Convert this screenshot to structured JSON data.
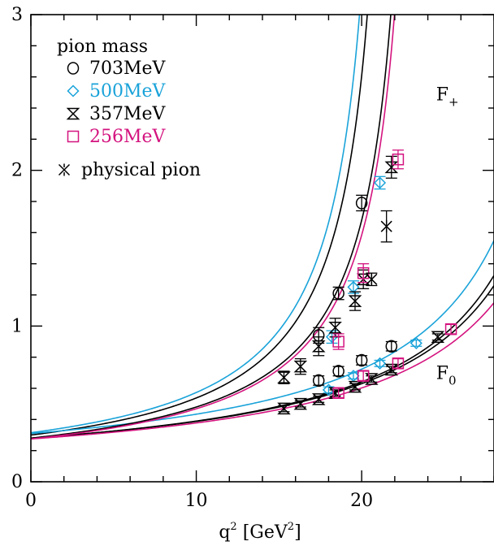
{
  "chart_data": {
    "type": "scatter",
    "xlabel_base": "q",
    "xlabel_sup": "2",
    "xlabel_unit_open": "[GeV",
    "xlabel_unit_sup": "2",
    "xlabel_unit_close": "]",
    "xlim": [
      0,
      28
    ],
    "ylim": [
      0,
      3
    ],
    "xticks": [
      0,
      10,
      20
    ],
    "yticks": [
      0,
      1,
      2,
      3
    ],
    "grid": false,
    "legend_position": "top-left",
    "legend_title": "pion mass",
    "curve_labels": [
      {
        "base": "F",
        "sub": "+",
        "x": 24.5,
        "y": 2.45
      },
      {
        "base": "F",
        "sub": "0",
        "x": 24.5,
        "y": 0.66
      }
    ],
    "colors": {
      "axis": "#000000",
      "black": "#000000",
      "cyan": "#1aa3d9",
      "magenta": "#d4147f"
    },
    "series": [
      {
        "name": "703MeV",
        "color": "#000000",
        "marker": "circle",
        "fplus": [
          {
            "x": 17.4,
            "y": 0.94,
            "e": 0.05
          },
          {
            "x": 18.6,
            "y": 1.21,
            "e": 0.04
          },
          {
            "x": 20.0,
            "y": 1.79,
            "e": 0.05
          }
        ],
        "fzero": [
          {
            "x": 17.4,
            "y": 0.65,
            "e": 0.03
          },
          {
            "x": 18.6,
            "y": 0.71,
            "e": 0.03
          },
          {
            "x": 20.0,
            "y": 0.78,
            "e": 0.03
          },
          {
            "x": 21.8,
            "y": 0.87,
            "e": 0.03
          }
        ],
        "curve_plus": {
          "a": 0.3,
          "m2": 22.6,
          "xmax": 22.2
        },
        "curve_zero": {
          "a": 0.28,
          "m2": 36.0,
          "xmax": 28.0
        }
      },
      {
        "name": "500MeV",
        "color": "#1aa3d9",
        "marker": "diamond",
        "fplus": [
          {
            "x": 18.2,
            "y": 0.93,
            "e": 0.04
          },
          {
            "x": 19.5,
            "y": 1.25,
            "e": 0.04
          },
          {
            "x": 21.1,
            "y": 1.92,
            "e": 0.04
          }
        ],
        "fzero": [
          {
            "x": 18.0,
            "y": 0.59,
            "e": 0.02
          },
          {
            "x": 19.5,
            "y": 0.68,
            "e": 0.02
          },
          {
            "x": 21.1,
            "y": 0.76,
            "e": 0.02
          },
          {
            "x": 23.3,
            "y": 0.89,
            "e": 0.02
          }
        ],
        "curve_plus": {
          "a": 0.315,
          "m2": 22.2,
          "xmax": 22.0
        },
        "curve_zero": {
          "a": 0.31,
          "m2": 35.0,
          "xmax": 28.0
        }
      },
      {
        "name": "357MeV",
        "color": "#000000",
        "marker": "hourglass",
        "fplus": [
          {
            "x": 15.3,
            "y": 0.67,
            "e": 0.04
          },
          {
            "x": 16.3,
            "y": 0.74,
            "e": 0.05
          },
          {
            "x": 17.4,
            "y": 0.87,
            "e": 0.06
          },
          {
            "x": 18.4,
            "y": 0.99,
            "e": 0.06
          },
          {
            "x": 19.6,
            "y": 1.16,
            "e": 0.06
          },
          {
            "x": 20.1,
            "y": 1.3,
            "e": 0.06
          },
          {
            "x": 21.8,
            "y": 2.02,
            "e": 0.07
          }
        ],
        "fzero": [
          {
            "x": 15.3,
            "y": 0.47,
            "e": 0.02
          },
          {
            "x": 16.3,
            "y": 0.5,
            "e": 0.02
          },
          {
            "x": 17.4,
            "y": 0.53,
            "e": 0.02
          },
          {
            "x": 18.4,
            "y": 0.57,
            "e": 0.02
          },
          {
            "x": 19.6,
            "y": 0.61,
            "e": 0.02
          },
          {
            "x": 20.6,
            "y": 0.66,
            "e": 0.02
          },
          {
            "x": 21.8,
            "y": 0.72,
            "e": 0.02
          },
          {
            "x": 24.6,
            "y": 0.93,
            "e": 0.02
          }
        ],
        "curve_plus": {
          "a": 0.28,
          "m2": 24.0,
          "xmax": 23.1
        },
        "curve_zero": {
          "a": 0.28,
          "m2": 35.5,
          "xmax": 28.0
        }
      },
      {
        "name": "256MeV",
        "color": "#d4147f",
        "marker": "square",
        "fplus": [
          {
            "x": 18.6,
            "y": 0.9,
            "e": 0.05
          },
          {
            "x": 20.1,
            "y": 1.34,
            "e": 0.06
          },
          {
            "x": 22.2,
            "y": 2.07,
            "e": 0.06
          }
        ],
        "fzero": [
          {
            "x": 18.6,
            "y": 0.57,
            "e": 0.03
          },
          {
            "x": 20.1,
            "y": 0.68,
            "e": 0.03
          },
          {
            "x": 22.2,
            "y": 0.76,
            "e": 0.03
          },
          {
            "x": 25.4,
            "y": 0.98,
            "e": 0.03
          }
        ],
        "curve_plus": {
          "a": 0.275,
          "m2": 24.2,
          "xmax": 23.0
        },
        "curve_zero": {
          "a": 0.275,
          "m2": 36.8,
          "xmax": 28.0
        }
      },
      {
        "name": "physical pion",
        "color": "#000000",
        "marker": "asterisk",
        "fplus": [
          {
            "x": 20.6,
            "y": 1.3,
            "e": 0.04
          },
          {
            "x": 21.5,
            "y": 1.64,
            "e": 0.1
          }
        ],
        "fzero": [],
        "curve_plus": null,
        "curve_zero": null
      }
    ]
  }
}
